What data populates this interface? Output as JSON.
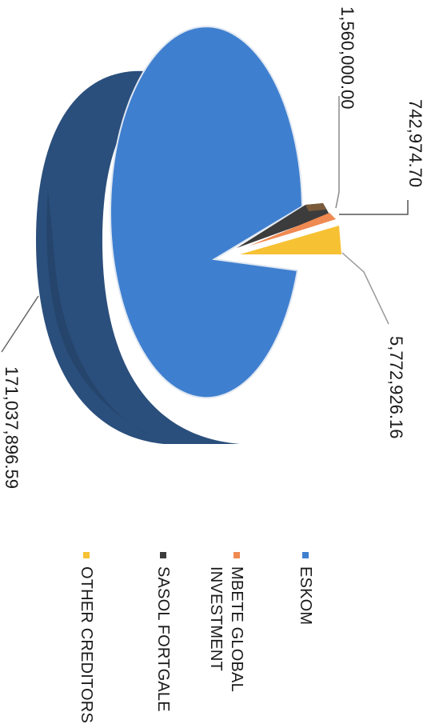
{
  "chart_data": {
    "type": "pie",
    "style": "3d",
    "title": "",
    "categories": [
      "ESKOM",
      "MBETE GLOBAL INVESTMENT",
      "SASOL FORTGALE",
      "OTHER CREDITORS"
    ],
    "legend": [
      {
        "label": "ESKOM",
        "lines": [
          "ESKOM"
        ],
        "color": "#3f7fcf"
      },
      {
        "label": "MBETE GLOBAL INVESTMENT",
        "lines": [
          "MBETE GLOBAL",
          "INVESTMENT"
        ],
        "color": "#ef8a52"
      },
      {
        "label": "SASOL FORTGALE",
        "lines": [
          "SASOL FORTGALE"
        ],
        "color": "#3c3c3c"
      },
      {
        "label": "OTHER CREDITORS",
        "lines": [
          "OTHER CREDITORS"
        ],
        "color": "#f6c133"
      }
    ],
    "legend_position": "bottom",
    "data_labels": {
      "eskom": "171,037,896.59",
      "mbete": "742,974.70",
      "sasol": "1,560,000.00",
      "other": "5,772,926.16"
    },
    "values": [
      171037896.59,
      742974.7,
      1560000.0,
      5772926.16
    ],
    "colors": {
      "eskom": "#3f7fcf",
      "eskom_side": "#2b4f7c",
      "mbete": "#ef8a52",
      "sasol": "#3c3c3c",
      "other": "#f6c133"
    }
  }
}
